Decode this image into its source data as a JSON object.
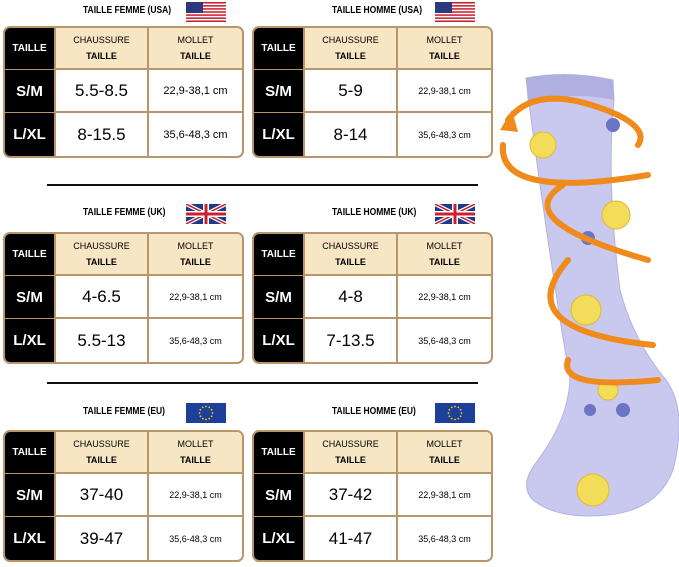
{
  "tables": [
    {
      "title": "TAILLE FEMME (USA)",
      "corner": "TAILLE",
      "headers": [
        [
          "CHAUSSURE",
          "TAILLE"
        ],
        [
          "MOLLET",
          "TAILLE"
        ]
      ],
      "rows": [
        {
          "size": "S/M",
          "shoe": "5.5-8.5",
          "calf": "22,9-38,1 cm"
        },
        {
          "size": "L/XL",
          "shoe": "8-15.5",
          "calf": "35,6-48,3 cm"
        }
      ]
    },
    {
      "title": "TAILLE HOMME (USA)",
      "corner": "TAILLE",
      "headers": [
        [
          "CHAUSSURE",
          "TAILLE"
        ],
        [
          "MOLLET",
          "TAILLE"
        ]
      ],
      "rows": [
        {
          "size": "S/M",
          "shoe": "5-9",
          "calf": "22,9-38,1 cm"
        },
        {
          "size": "L/XL",
          "shoe": "8-14",
          "calf": "35,6-48,3 cm"
        }
      ]
    },
    {
      "title": "TAILLE FEMME (UK)",
      "corner": "TAILLE",
      "headers": [
        [
          "CHAUSSURE",
          "TAILLE"
        ],
        [
          "MOLLET",
          "TAILLE"
        ]
      ],
      "rows": [
        {
          "size": "S/M",
          "shoe": "4-6.5",
          "calf": "22,9-38,1 cm"
        },
        {
          "size": "L/XL",
          "shoe": "5.5-13",
          "calf": "35,6-48,3 cm"
        }
      ]
    },
    {
      "title": "TAILLE HOMME (UK)",
      "corner": "TAILLE",
      "headers": [
        [
          "CHAUSSURE",
          "TAILLE"
        ],
        [
          "MOLLET",
          "TAILLE"
        ]
      ],
      "rows": [
        {
          "size": "S/M",
          "shoe": "4-8",
          "calf": "22,9-38,1 cm"
        },
        {
          "size": "L/XL",
          "shoe": "7-13.5",
          "calf": "35,6-48,3 cm"
        }
      ]
    },
    {
      "title": "TAILLE FEMME (EU)",
      "corner": "TAILLE",
      "headers": [
        [
          "CHAUSSURE",
          "TAILLE"
        ],
        [
          "MOLLET",
          "TAILLE"
        ]
      ],
      "rows": [
        {
          "size": "S/M",
          "shoe": "37-40",
          "calf": "22,9-38,1 cm"
        },
        {
          "size": "L/XL",
          "shoe": "39-47",
          "calf": "35,6-48,3 cm"
        }
      ]
    },
    {
      "title": "TAILLE HOMME (EU)",
      "corner": "TAILLE",
      "headers": [
        [
          "CHAUSSURE",
          "TAILLE"
        ],
        [
          "MOLLET",
          "TAILLE"
        ]
      ],
      "rows": [
        {
          "size": "S/M",
          "shoe": "37-42",
          "calf": "22,9-38,1 cm"
        },
        {
          "size": "L/XL",
          "shoe": "41-47",
          "calf": "35,6-48,3 cm"
        }
      ]
    }
  ]
}
